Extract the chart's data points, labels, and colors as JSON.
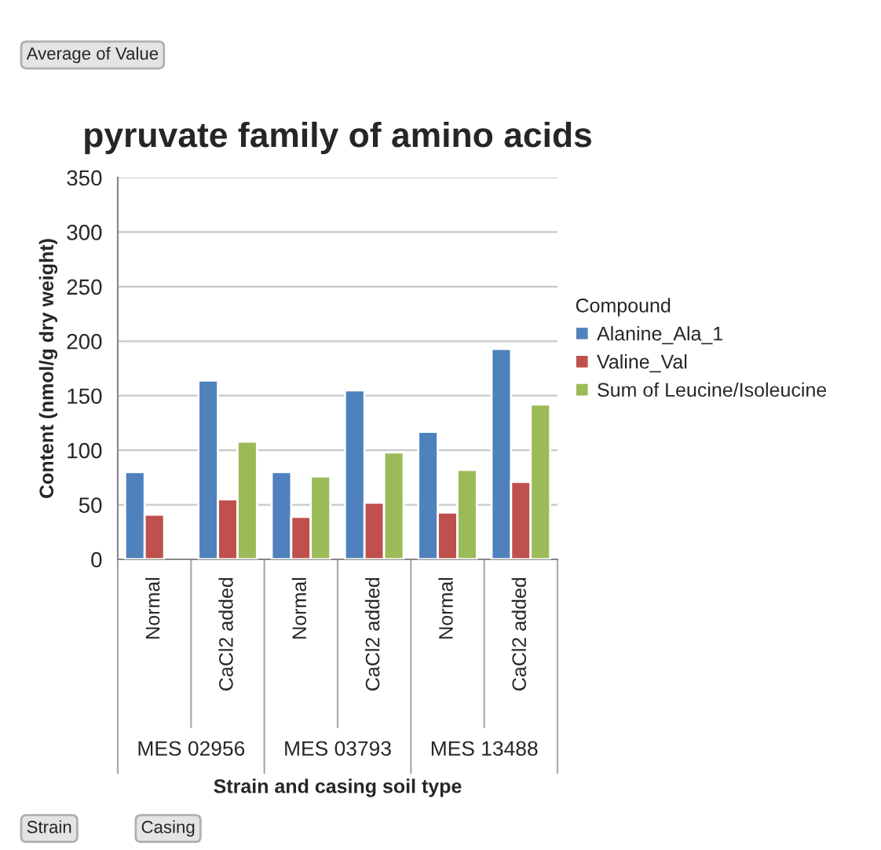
{
  "chart_data": {
    "type": "bar",
    "title": "pyruvate family of amino acids",
    "xlabel": "Strain and casing soil type",
    "ylabel": "Content (nmol/g dry weight)",
    "legend_title": "Compound",
    "categories": [
      "Normal",
      "CaCl2 added",
      "Normal",
      "CaCl2 added",
      "Normal",
      "CaCl2 added"
    ],
    "series": [
      {
        "name": "Alanine_Ala_1",
        "color": "#4f81bd",
        "values": [
          80,
          164,
          80,
          155,
          117,
          193
        ]
      },
      {
        "name": "Valine_Val",
        "color": "#c0504d",
        "values": [
          41,
          55,
          39,
          52,
          43,
          71
        ]
      },
      {
        "name": "Sum of Leucine/Isoleucine",
        "color": "#9bbb59",
        "values": [
          null,
          108,
          76,
          98,
          82,
          142
        ]
      }
    ],
    "annotations": [
      "MES 02956",
      "MES 03793",
      "MES 13488",
      "Average of Value",
      "Strain",
      "Casing"
    ],
    "ylim": [
      0,
      350
    ],
    "yticks": [
      0,
      50,
      100,
      150,
      200,
      250,
      300,
      350
    ],
    "grid": "y",
    "legend": "right"
  }
}
